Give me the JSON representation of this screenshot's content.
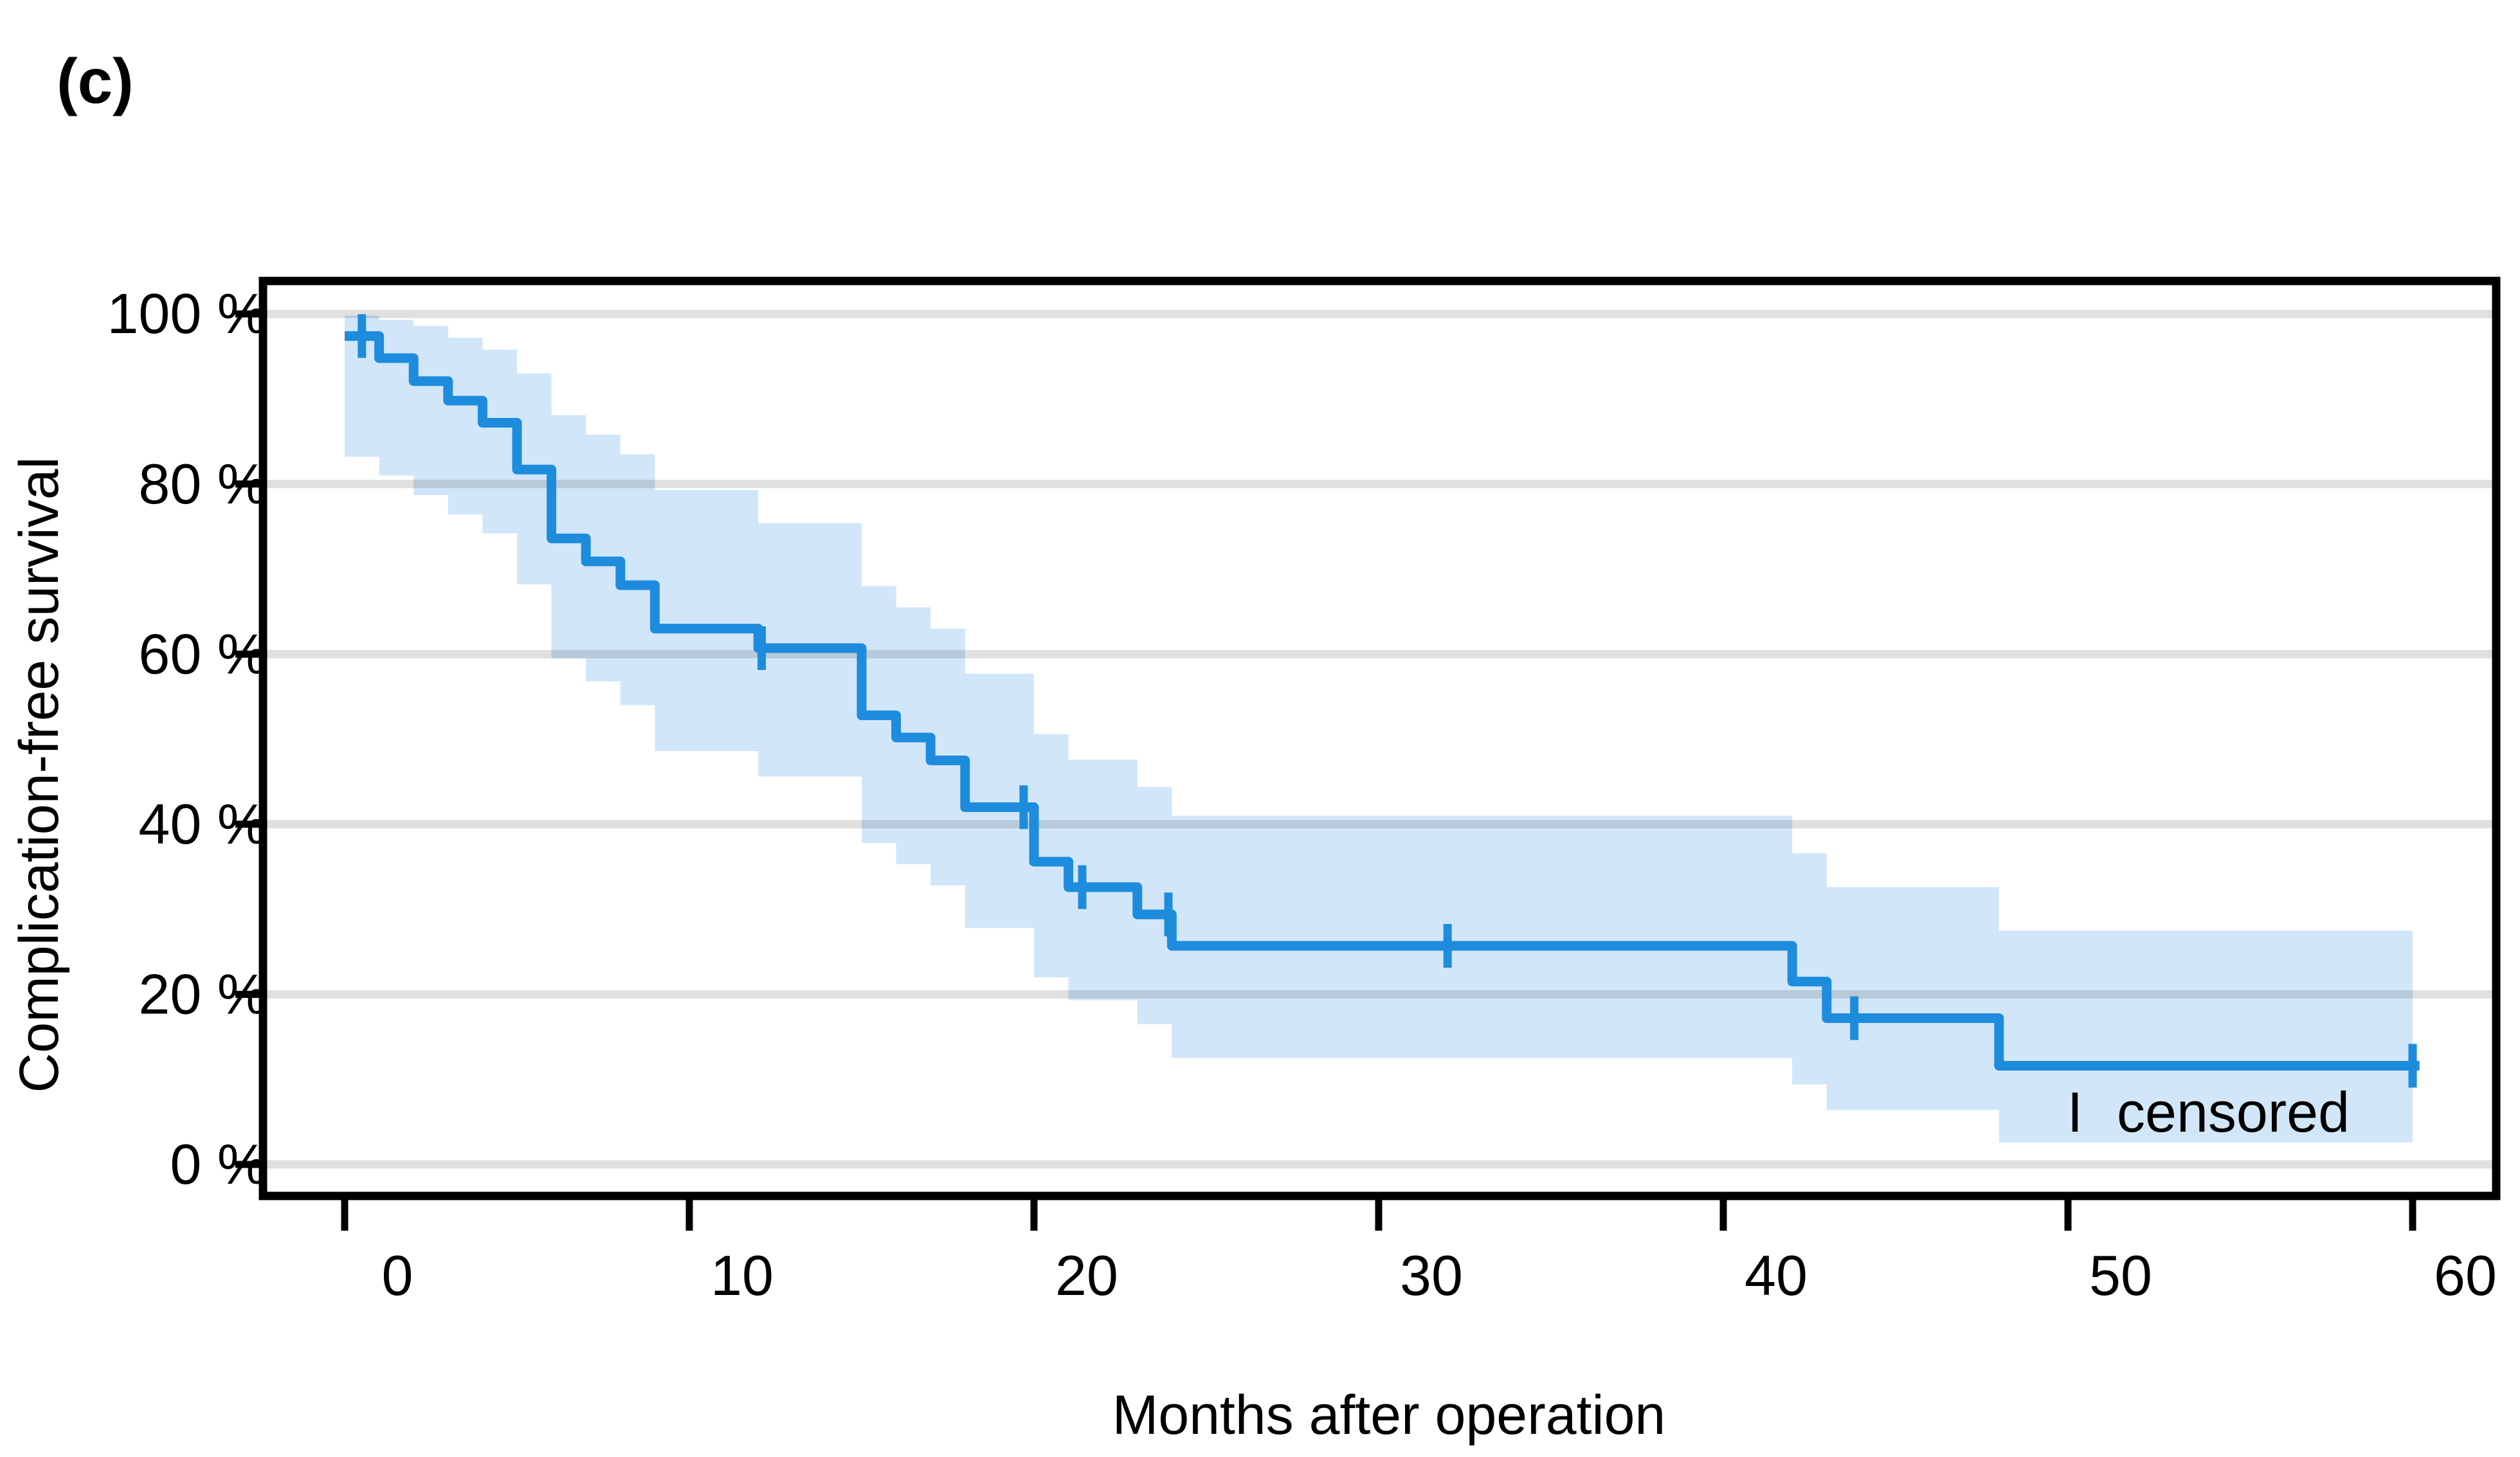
{
  "figure_label": "(c)",
  "chart_data": {
    "type": "line",
    "subtype": "kaplan-meier-step",
    "title": "",
    "xlabel": "Months after operation",
    "ylabel": "Complication-free survival",
    "x_ticks": [
      0,
      10,
      20,
      30,
      40,
      50,
      60
    ],
    "y_ticks": [
      {
        "value": 0,
        "label": "0 %"
      },
      {
        "value": 20,
        "label": "20 %"
      },
      {
        "value": 40,
        "label": "40 %"
      },
      {
        "value": 60,
        "label": "60 %"
      },
      {
        "value": 80,
        "label": "80 %"
      },
      {
        "value": 100,
        "label": "100 %"
      }
    ],
    "xlim": [
      -2.4,
      62.4
    ],
    "ylim": [
      -3.7,
      104
    ],
    "grid": true,
    "legend": {
      "marker": "I",
      "label": "censored",
      "position": "bottom-right-inside"
    },
    "survival_steps": [
      {
        "t": 0,
        "s": 97.4
      },
      {
        "t": 1,
        "s": 94.8
      },
      {
        "t": 2,
        "s": 92.1
      },
      {
        "t": 3,
        "s": 89.8
      },
      {
        "t": 4,
        "s": 87.2
      },
      {
        "t": 5,
        "s": 81.7
      },
      {
        "t": 6,
        "s": 73.6
      },
      {
        "t": 7,
        "s": 70.9
      },
      {
        "t": 8,
        "s": 68.1
      },
      {
        "t": 9,
        "s": 63.0
      },
      {
        "t": 12,
        "s": 60.7
      },
      {
        "t": 15,
        "s": 52.8
      },
      {
        "t": 16,
        "s": 50.2
      },
      {
        "t": 17,
        "s": 47.5
      },
      {
        "t": 18,
        "s": 42.0
      },
      {
        "t": 20,
        "s": 35.6
      },
      {
        "t": 21,
        "s": 32.6
      },
      {
        "t": 23,
        "s": 29.4
      },
      {
        "t": 24,
        "s": 25.7
      },
      {
        "t": 42,
        "s": 21.5
      },
      {
        "t": 43,
        "s": 17.2
      },
      {
        "t": 48,
        "s": 11.6
      }
    ],
    "curve_end_month": 60.2,
    "censor_marks": [
      {
        "t": 0.5,
        "s": 97.4
      },
      {
        "t": 12.1,
        "s": 60.7
      },
      {
        "t": 19.7,
        "s": 42.0
      },
      {
        "t": 21.4,
        "s": 32.6
      },
      {
        "t": 23.9,
        "s": 29.4
      },
      {
        "t": 32.0,
        "s": 25.7
      },
      {
        "t": 43.8,
        "s": 17.2
      },
      {
        "t": 60.0,
        "s": 11.6
      }
    ],
    "confidence_band": [
      {
        "t": 0,
        "lo": 83.2,
        "hi": 99.8
      },
      {
        "t": 1,
        "lo": 81.0,
        "hi": 99.3
      },
      {
        "t": 2,
        "lo": 78.7,
        "hi": 98.6
      },
      {
        "t": 3,
        "lo": 76.4,
        "hi": 97.2
      },
      {
        "t": 4,
        "lo": 74.2,
        "hi": 95.8
      },
      {
        "t": 5,
        "lo": 68.2,
        "hi": 93.0
      },
      {
        "t": 6,
        "lo": 59.5,
        "hi": 88.1
      },
      {
        "t": 7,
        "lo": 56.8,
        "hi": 85.8
      },
      {
        "t": 8,
        "lo": 54.0,
        "hi": 83.5
      },
      {
        "t": 9,
        "lo": 48.6,
        "hi": 79.3
      },
      {
        "t": 12,
        "lo": 45.6,
        "hi": 75.4
      },
      {
        "t": 15,
        "lo": 37.8,
        "hi": 68.0
      },
      {
        "t": 16,
        "lo": 35.3,
        "hi": 65.5
      },
      {
        "t": 17,
        "lo": 32.8,
        "hi": 63.0
      },
      {
        "t": 18,
        "lo": 27.8,
        "hi": 57.7
      },
      {
        "t": 20,
        "lo": 22.0,
        "hi": 50.6
      },
      {
        "t": 21,
        "lo": 19.3,
        "hi": 47.6
      },
      {
        "t": 23,
        "lo": 16.5,
        "hi": 44.4
      },
      {
        "t": 24,
        "lo": 12.5,
        "hi": 41.0
      },
      {
        "t": 42,
        "lo": 9.4,
        "hi": 36.6
      },
      {
        "t": 43,
        "lo": 6.4,
        "hi": 32.6
      },
      {
        "t": 48,
        "lo": 2.6,
        "hi": 27.5
      }
    ],
    "band_end_month": 60.0,
    "colors": {
      "line": "#1e8cdc",
      "band": "#d2e6f9",
      "grid": "#e0e0e0",
      "axis": "#000000",
      "text": "#000000",
      "background": "#ffffff"
    }
  }
}
